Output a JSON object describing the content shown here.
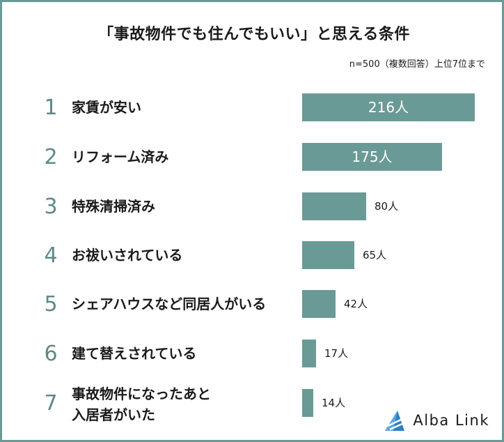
{
  "title": "「事故物件でも住んでもいい」と思える条件",
  "subtitle": "n=500（複数回答）上位7位まで",
  "brand": {
    "name": "Alba Link",
    "color": "#2d7fc1"
  },
  "colors": {
    "bar": "#6a9a96",
    "frame": "#6a9a96",
    "rank": "#5c8a86"
  },
  "chart_data": {
    "type": "bar",
    "orientation": "horizontal",
    "unit": "人",
    "title": "「事故物件でも住んでもいい」と思える条件",
    "subtitle": "n=500（複数回答）上位7位まで",
    "xlim": [
      0,
      216
    ],
    "grid": false,
    "legend": "none",
    "items": [
      {
        "rank": "1",
        "category": "家賃が安い",
        "value": 216,
        "value_label": "216人"
      },
      {
        "rank": "2",
        "category": "リフォーム済み",
        "value": 175,
        "value_label": "175人"
      },
      {
        "rank": "3",
        "category": "特殊清掃済み",
        "value": 80,
        "value_label": "80人"
      },
      {
        "rank": "4",
        "category": "お祓いされている",
        "value": 65,
        "value_label": "65人"
      },
      {
        "rank": "5",
        "category": "シェアハウスなど同居人がいる",
        "value": 42,
        "value_label": "42人"
      },
      {
        "rank": "6",
        "category": "建て替えされている",
        "value": 17,
        "value_label": "17人"
      },
      {
        "rank": "7",
        "category": "事故物件になったあと\n入居者がいた",
        "value": 14,
        "value_label": "14人"
      }
    ]
  }
}
